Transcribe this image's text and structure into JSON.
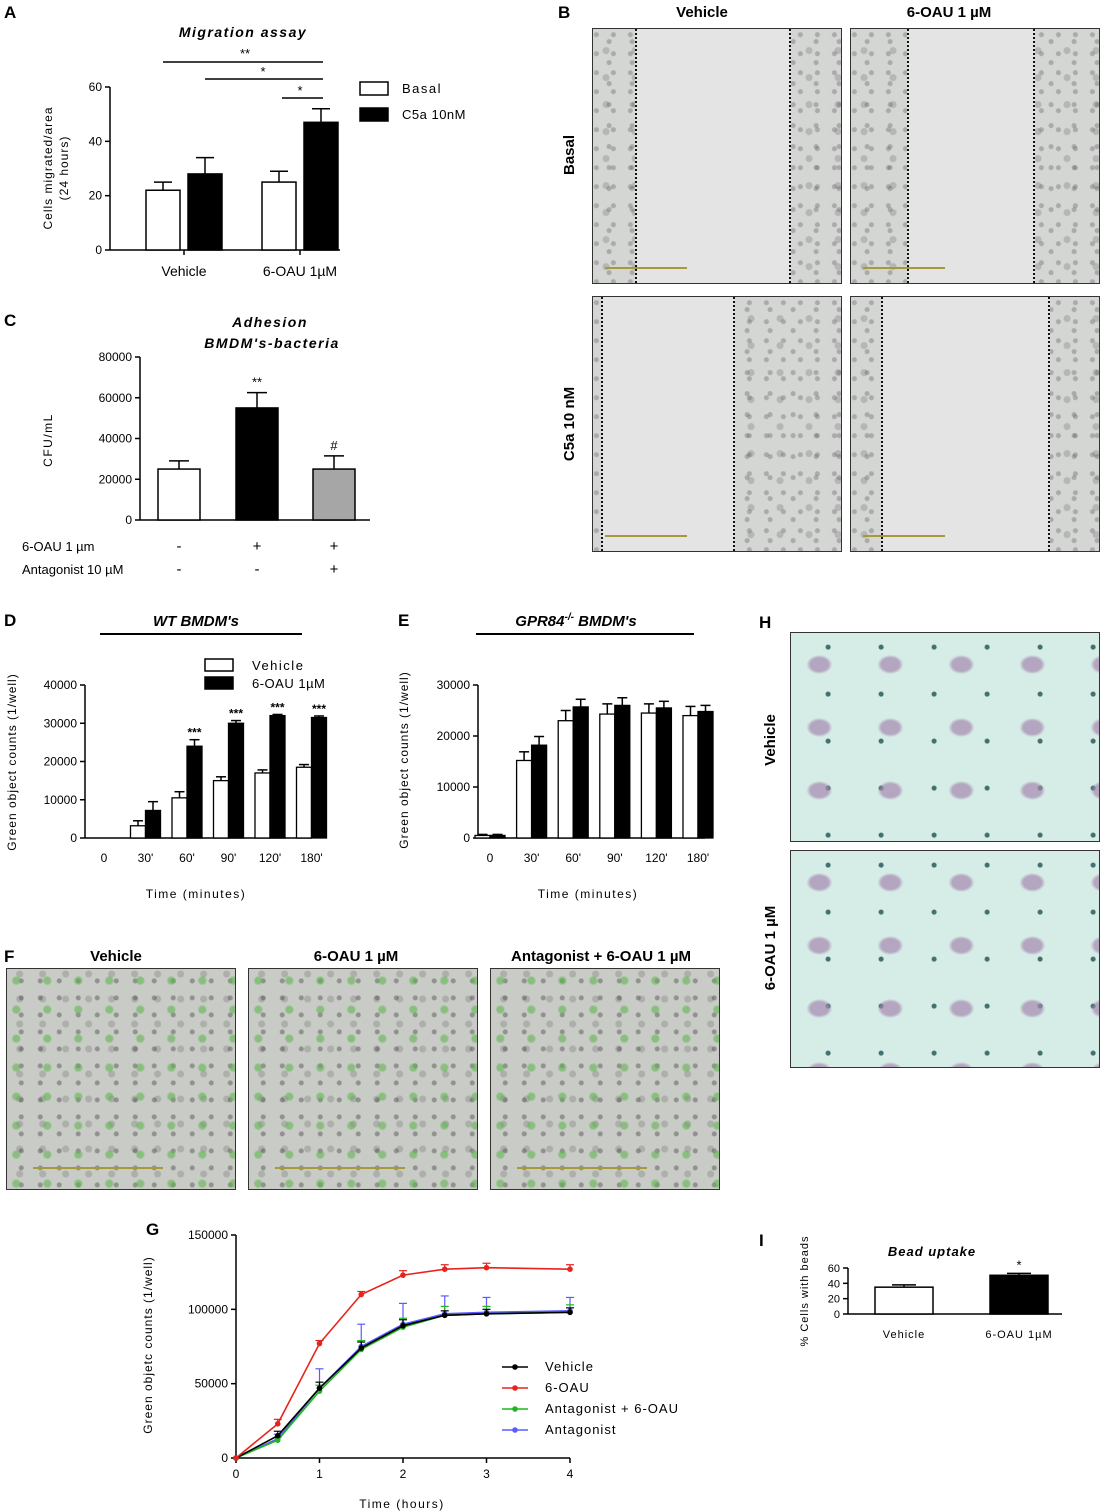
{
  "panels": {
    "A": "A",
    "B": "B",
    "C": "C",
    "D": "D",
    "E": "E",
    "F": "F",
    "G": "G",
    "H": "H",
    "I": "I"
  },
  "chart_data": [
    {
      "id": "A",
      "type": "bar",
      "title": "Migration assay",
      "ylabel": "Cells migrated/area (24 hours)",
      "xlabel": "",
      "ylim": [
        0,
        60
      ],
      "yticks": [
        0,
        20,
        40,
        60
      ],
      "categories": [
        "Vehicle",
        "6-OAU 1µM"
      ],
      "series": [
        {
          "name": "Basal",
          "values": [
            22,
            25
          ],
          "errors": [
            3,
            4
          ],
          "color": "#ffffff"
        },
        {
          "name": "C5a 10nM",
          "values": [
            28,
            47
          ],
          "errors": [
            6,
            5
          ],
          "color": "#000000"
        }
      ],
      "significance": [
        "**",
        "*",
        "*"
      ],
      "legend": "right"
    },
    {
      "id": "C",
      "type": "bar",
      "title": "Adhesion",
      "subtitle": "BMDM's-bacteria",
      "ylabel": "CFU/mL",
      "xlabel": "",
      "ylim": [
        0,
        80000
      ],
      "yticks": [
        0,
        20000,
        40000,
        60000,
        80000
      ],
      "values": [
        25000,
        55000,
        25000
      ],
      "errors": [
        4000,
        7500,
        6500
      ],
      "colors": [
        "#ffffff",
        "#000000",
        "#a6a6a6"
      ],
      "annotations": [
        "",
        "**",
        "#"
      ],
      "conditions": [
        {
          "label": "6-OAU 1 µm",
          "values": [
            "-",
            "+",
            "+"
          ]
        },
        {
          "label": "Antagonist 10 µM",
          "values": [
            "-",
            "-",
            "+"
          ]
        }
      ]
    },
    {
      "id": "D",
      "type": "bar",
      "title": "WT  BMDM's",
      "ylabel": "Green object counts (1/well)",
      "xlabel": "Time (minutes)",
      "ylim": [
        0,
        40000
      ],
      "yticks": [
        0,
        10000,
        20000,
        30000,
        40000
      ],
      "categories": [
        "0",
        "30'",
        "60'",
        "90'",
        "120'",
        "180'"
      ],
      "series": [
        {
          "name": "Vehicle",
          "values": [
            0,
            3200,
            10500,
            15000,
            17000,
            18500
          ],
          "errors": [
            0,
            1300,
            1600,
            1000,
            800,
            700
          ],
          "color": "#ffffff"
        },
        {
          "name": "6-OAU 1µM",
          "values": [
            0,
            7200,
            24000,
            30000,
            32000,
            31500
          ],
          "errors": [
            0,
            2300,
            1700,
            700,
            300,
            400
          ],
          "color": "#000000"
        }
      ],
      "annotations": [
        "",
        "",
        "***",
        "***",
        "***",
        "***"
      ],
      "legend": "top-right"
    },
    {
      "id": "E",
      "type": "bar",
      "title_main": "GPR84",
      "title_sup": "-/-",
      "title_rest": " BMDM's",
      "ylabel": "Green object counts (1/well)",
      "xlabel": "Time (minutes)",
      "ylim": [
        0,
        30000
      ],
      "yticks": [
        0,
        10000,
        20000,
        30000
      ],
      "categories": [
        "0",
        "30'",
        "60'",
        "90'",
        "120'",
        "180'"
      ],
      "series": [
        {
          "name": "Vehicle",
          "values": [
            500,
            15200,
            23000,
            24300,
            24500,
            24000
          ],
          "errors": [
            200,
            1700,
            2000,
            2000,
            1800,
            1800
          ],
          "color": "#ffffff"
        },
        {
          "name": "6-OAU 1µM",
          "values": [
            500,
            18200,
            25700,
            26000,
            25500,
            24800
          ],
          "errors": [
            200,
            1700,
            1500,
            1500,
            1300,
            1200
          ],
          "color": "#000000"
        }
      ]
    },
    {
      "id": "G",
      "type": "line",
      "ylabel": "Green objetc counts (1/well)",
      "xlabel": "Time (hours)",
      "xlim": [
        0,
        4
      ],
      "ylim": [
        0,
        150000
      ],
      "xticks": [
        0,
        1,
        2,
        3,
        4
      ],
      "yticks": [
        0,
        50000,
        100000,
        150000
      ],
      "x": [
        0,
        0.5,
        1,
        1.5,
        2,
        2.5,
        3,
        4
      ],
      "series": [
        {
          "name": "Vehicle",
          "color": "#000000",
          "values": [
            0,
            15000,
            47000,
            74000,
            89000,
            96000,
            97000,
            98000
          ],
          "errors": [
            0,
            3000,
            4000,
            4000,
            4000,
            3000,
            3000,
            3000
          ]
        },
        {
          "name": "6-OAU",
          "color": "#e8231b",
          "values": [
            0,
            23000,
            77000,
            110000,
            123000,
            127000,
            128000,
            127000
          ],
          "errors": [
            0,
            3000,
            2000,
            2000,
            3000,
            3000,
            3000,
            3000
          ]
        },
        {
          "name": "Antagonist + 6-OAU",
          "color": "#1fb61f",
          "values": [
            0,
            12000,
            45000,
            73000,
            88000,
            96000,
            97000,
            98000
          ],
          "errors": [
            0,
            2000,
            4000,
            6000,
            6000,
            6000,
            5000,
            5000
          ]
        },
        {
          "name": "Antagonist",
          "color": "#5b5bff",
          "values": [
            0,
            13000,
            47000,
            75000,
            90000,
            97000,
            98000,
            99000
          ],
          "errors": [
            0,
            3000,
            13000,
            15000,
            14000,
            12000,
            10000,
            9000
          ]
        }
      ],
      "legend": "bottom-right"
    },
    {
      "id": "I",
      "type": "bar",
      "title": "Bead uptake",
      "ylabel": "% Cells with beads",
      "xlabel": "",
      "ylim": [
        0,
        60
      ],
      "yticks": [
        0,
        20,
        40,
        60
      ],
      "categories": [
        "Vehicle",
        "6-OAU 1µM"
      ],
      "values": [
        35,
        50.5
      ],
      "errors": [
        3,
        2.5
      ],
      "colors": [
        "#ffffff",
        "#000000"
      ],
      "annotations": [
        "",
        "*"
      ]
    }
  ],
  "panelB": {
    "col_labels": [
      "Vehicle",
      "6-OAU 1 µM"
    ],
    "row_labels": [
      "Basal",
      "C5a 10 nM"
    ]
  },
  "panelF": {
    "labels": [
      "Vehicle",
      "6-OAU 1 µM",
      "Antagonist + 6-OAU 1 µM"
    ]
  },
  "panelH": {
    "row_labels": [
      "Vehicle",
      "6-OAU 1 µM"
    ]
  }
}
